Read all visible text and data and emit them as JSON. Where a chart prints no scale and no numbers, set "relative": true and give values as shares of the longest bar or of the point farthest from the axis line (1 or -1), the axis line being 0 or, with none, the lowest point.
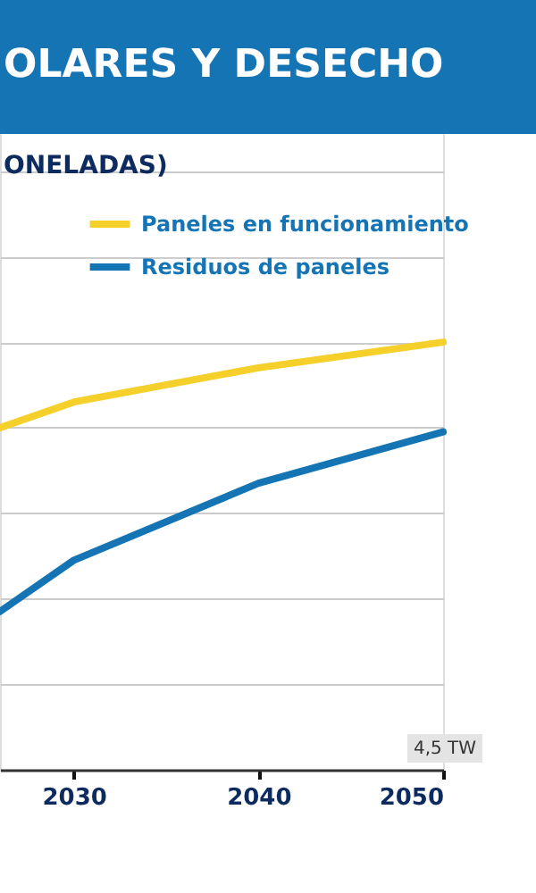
{
  "chart_data": {
    "type": "line",
    "title": "OLARES Y DESECHO",
    "subtitle": "ONELADAS)",
    "relative": true,
    "x": [
      2026,
      2030,
      2040,
      2050
    ],
    "xlim": [
      2026,
      2050
    ],
    "xticks": [
      2030,
      2040,
      2050
    ],
    "series": [
      {
        "name": "Paneles en funcionamiento",
        "color": "#f5cf2a",
        "values": [
          0.8,
          0.86,
          0.94,
          1
        ]
      },
      {
        "name": "Residuos de paneles",
        "color": "#1474b4",
        "values": [
          0.37,
          0.49,
          0.67,
          0.79
        ]
      }
    ],
    "annotations": [
      "4,5 TW"
    ],
    "legend": "top right",
    "grid": "y",
    "marker": "none",
    "line_style": "solid"
  }
}
